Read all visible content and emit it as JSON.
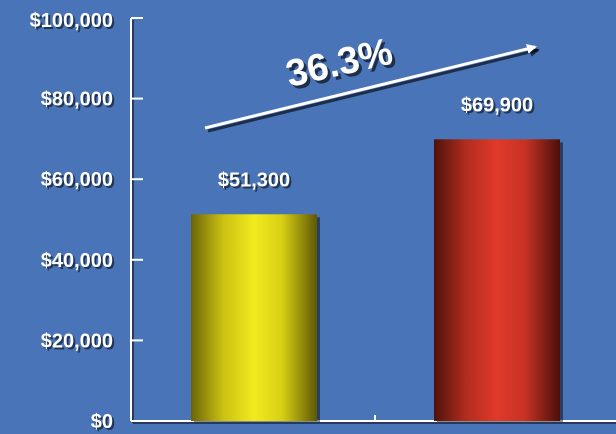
{
  "chart_data": {
    "type": "bar",
    "categories": [
      "",
      ""
    ],
    "values": [
      51300,
      69900
    ],
    "value_labels": [
      "$51,300",
      "$69,900"
    ],
    "ylim": [
      0,
      100000
    ],
    "yticks": [
      0,
      20000,
      40000,
      60000,
      80000,
      100000
    ],
    "ytick_labels": [
      "$0",
      "$20,000",
      "$40,000",
      "$60,000",
      "$80,000",
      "$100,000"
    ],
    "annotation": "36.3%",
    "bar_colors": [
      "#e8e020",
      "#d83a28"
    ],
    "grid": false,
    "legend": "none"
  },
  "colors": {
    "background": "#4a74b8",
    "axis": "#ffffff",
    "text": "#ffffff"
  }
}
